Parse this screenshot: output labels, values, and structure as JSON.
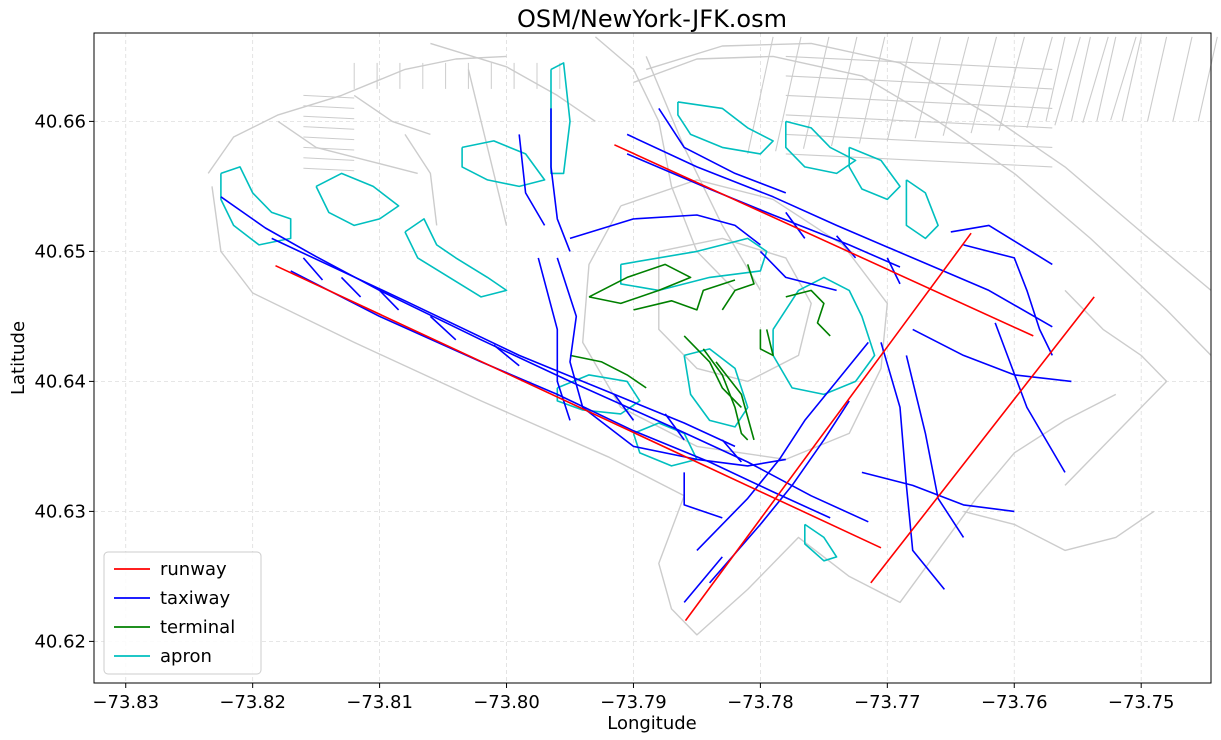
{
  "chart_data": {
    "type": "map",
    "title": "OSM/NewYork-JFK.osm",
    "xlabel": "Longitude",
    "ylabel": "Latitude",
    "xlim": [
      -73.8325,
      -73.7445
    ],
    "ylim": [
      40.6168,
      40.6668
    ],
    "xticks": [
      -73.83,
      -73.82,
      -73.81,
      -73.8,
      -73.79,
      -73.78,
      -73.77,
      -73.76,
      -73.75
    ],
    "xtick_labels": [
      "−73.83",
      "−73.82",
      "−73.81",
      "−73.80",
      "−73.79",
      "−73.78",
      "−73.77",
      "−73.76",
      "−73.75"
    ],
    "yticks": [
      40.62,
      40.63,
      40.64,
      40.65,
      40.66
    ],
    "ytick_labels": [
      "40.62",
      "40.63",
      "40.64",
      "40.65",
      "40.66"
    ],
    "grid": true,
    "legend_position": "lower-left",
    "legend": [
      {
        "name": "runway",
        "color": "#ff0000"
      },
      {
        "name": "taxiway",
        "color": "#0000ff"
      },
      {
        "name": "terminal",
        "color": "#008000"
      },
      {
        "name": "apron",
        "color": "#00bfbf"
      }
    ],
    "background_color": "#cccccc",
    "runways": [
      [
        [
          -73.8182,
          40.6489
        ],
        [
          -73.7705,
          40.6272
        ]
      ],
      [
        [
          -73.7915,
          40.6582
        ],
        [
          -73.7585,
          40.6435
        ]
      ],
      [
        [
          -73.7859,
          40.6216
        ],
        [
          -73.7634,
          40.6514
        ]
      ],
      [
        [
          -73.7713,
          40.6245
        ],
        [
          -73.7537,
          40.6465
        ]
      ]
    ],
    "taxiways": [
      [
        [
          -73.8225,
          40.6542
        ],
        [
          -73.819,
          40.6518
        ],
        [
          -73.815,
          40.6496
        ],
        [
          -73.81,
          40.647
        ],
        [
          -73.802,
          40.6432
        ],
        [
          -73.795,
          40.64
        ],
        [
          -73.787,
          40.6365
        ],
        [
          -73.781,
          40.6338
        ],
        [
          -73.776,
          40.6312
        ],
        [
          -73.7715,
          40.6292
        ]
      ],
      [
        [
          -73.817,
          40.6485
        ],
        [
          -73.81,
          40.645
        ],
        [
          -73.802,
          40.6415
        ],
        [
          -73.796,
          40.639
        ],
        [
          -73.79,
          40.6362
        ],
        [
          -73.784,
          40.6338
        ],
        [
          -73.779,
          40.6315
        ],
        [
          -73.7745,
          40.6295
        ]
      ],
      [
        [
          -73.8185,
          40.651
        ],
        [
          -73.808,
          40.6462
        ],
        [
          -73.799,
          40.642
        ],
        [
          -73.792,
          40.6392
        ],
        [
          -73.786,
          40.6368
        ],
        [
          -73.782,
          40.635
        ]
      ],
      [
        [
          -73.7905,
          40.659
        ],
        [
          -73.785,
          40.6565
        ],
        [
          -73.779,
          40.6542
        ],
        [
          -73.774,
          40.652
        ],
        [
          -73.768,
          40.6495
        ],
        [
          -73.762,
          40.647
        ],
        [
          -73.757,
          40.6442
        ]
      ],
      [
        [
          -73.7905,
          40.6575
        ],
        [
          -73.784,
          40.6548
        ],
        [
          -73.779,
          40.6528
        ],
        [
          -73.773,
          40.6505
        ],
        [
          -73.769,
          40.6488
        ]
      ],
      [
        [
          -73.788,
          40.661
        ],
        [
          -73.786,
          40.658
        ],
        [
          -73.782,
          40.656
        ],
        [
          -73.778,
          40.6545
        ]
      ],
      [
        [
          -73.7965,
          40.661
        ],
        [
          -73.7965,
          40.6565
        ],
        [
          -73.796,
          40.6525
        ],
        [
          -73.795,
          40.65
        ]
      ],
      [
        [
          -73.799,
          40.659
        ],
        [
          -73.7985,
          40.6545
        ],
        [
          -73.797,
          40.652
        ]
      ],
      [
        [
          -73.795,
          40.651
        ],
        [
          -73.79,
          40.6525
        ],
        [
          -73.785,
          40.6528
        ],
        [
          -73.782,
          40.652
        ],
        [
          -73.78,
          40.6505
        ]
      ],
      [
        [
          -73.796,
          40.6495
        ],
        [
          -73.7945,
          40.645
        ],
        [
          -73.795,
          40.6415
        ],
        [
          -73.794,
          40.638
        ],
        [
          -73.79,
          40.635
        ],
        [
          -73.785,
          40.634
        ],
        [
          -73.781,
          40.6335
        ],
        [
          -73.778,
          40.634
        ]
      ],
      [
        [
          -73.7975,
          40.6495
        ],
        [
          -73.796,
          40.644
        ],
        [
          -73.796,
          40.64
        ],
        [
          -73.795,
          40.637
        ]
      ],
      [
        [
          -73.78,
          40.65
        ],
        [
          -73.778,
          40.648
        ],
        [
          -73.774,
          40.647
        ]
      ],
      [
        [
          -73.785,
          40.627
        ],
        [
          -73.781,
          40.631
        ],
        [
          -73.7785,
          40.634
        ],
        [
          -73.7765,
          40.637
        ],
        [
          -73.774,
          40.64
        ],
        [
          -73.7715,
          40.643
        ]
      ],
      [
        [
          -73.784,
          40.6245
        ],
        [
          -73.78,
          40.629
        ],
        [
          -73.7775,
          40.632
        ],
        [
          -73.775,
          40.6355
        ],
        [
          -73.773,
          40.6385
        ]
      ],
      [
        [
          -73.786,
          40.623
        ],
        [
          -73.783,
          40.6265
        ]
      ],
      [
        [
          -73.7705,
          40.643
        ],
        [
          -73.769,
          40.638
        ],
        [
          -73.7685,
          40.632
        ],
        [
          -73.768,
          40.627
        ],
        [
          -73.7655,
          40.624
        ]
      ],
      [
        [
          -73.7685,
          40.642
        ],
        [
          -73.767,
          40.636
        ],
        [
          -73.766,
          40.631
        ],
        [
          -73.764,
          40.628
        ]
      ],
      [
        [
          -73.764,
          40.6505
        ],
        [
          -73.76,
          40.6495
        ],
        [
          -73.759,
          40.647
        ],
        [
          -73.758,
          40.644
        ],
        [
          -73.757,
          40.642
        ]
      ],
      [
        [
          -73.765,
          40.6515
        ],
        [
          -73.762,
          40.652
        ],
        [
          -73.757,
          40.649
        ]
      ],
      [
        [
          -73.768,
          40.644
        ],
        [
          -73.764,
          40.642
        ],
        [
          -73.76,
          40.6405
        ],
        [
          -73.7555,
          40.64
        ]
      ],
      [
        [
          -73.7615,
          40.6445
        ],
        [
          -73.759,
          40.638
        ],
        [
          -73.756,
          40.633
        ]
      ],
      [
        [
          -73.772,
          40.633
        ],
        [
          -73.768,
          40.632
        ],
        [
          -73.764,
          40.6305
        ],
        [
          -73.76,
          40.63
        ]
      ],
      [
        [
          -73.786,
          40.633
        ],
        [
          -73.786,
          40.6305
        ],
        [
          -73.783,
          40.6295
        ]
      ],
      [
        [
          -73.816,
          40.6495
        ],
        [
          -73.8145,
          40.6478
        ]
      ],
      [
        [
          -73.813,
          40.648
        ],
        [
          -73.8115,
          40.6465
        ]
      ],
      [
        [
          -73.81,
          40.647
        ],
        [
          -73.8085,
          40.6455
        ]
      ],
      [
        [
          -73.806,
          40.645
        ],
        [
          -73.804,
          40.6432
        ]
      ],
      [
        [
          -73.801,
          40.6428
        ],
        [
          -73.799,
          40.6412
        ]
      ],
      [
        [
          -73.7915,
          40.639
        ],
        [
          -73.79,
          40.637
        ]
      ],
      [
        [
          -73.7875,
          40.6375
        ],
        [
          -73.786,
          40.6355
        ]
      ],
      [
        [
          -73.783,
          40.6355
        ],
        [
          -73.7815,
          40.6338
        ]
      ],
      [
        [
          -73.778,
          40.653
        ],
        [
          -73.7765,
          40.651
        ]
      ],
      [
        [
          -73.774,
          40.6512
        ],
        [
          -73.7725,
          40.6495
        ]
      ],
      [
        [
          -73.77,
          40.6495
        ],
        [
          -73.769,
          40.6475
        ]
      ]
    ],
    "terminals": [
      [
        [
          -73.7935,
          40.6465
        ],
        [
          -73.7905,
          40.648
        ],
        [
          -73.7875,
          40.649
        ],
        [
          -73.7855,
          40.648
        ],
        [
          -73.788,
          40.647
        ],
        [
          -73.791,
          40.646
        ],
        [
          -73.7935,
          40.6465
        ]
      ],
      [
        [
          -73.79,
          40.6455
        ],
        [
          -73.787,
          40.6462
        ],
        [
          -73.785,
          40.6455
        ],
        [
          -73.7845,
          40.647
        ],
        [
          -73.782,
          40.6478
        ]
      ],
      [
        [
          -73.783,
          40.6455
        ],
        [
          -73.782,
          40.647
        ],
        [
          -73.7805,
          40.6475
        ],
        [
          -73.781,
          40.649
        ]
      ],
      [
        [
          -73.78,
          40.644
        ],
        [
          -73.78,
          40.6425
        ],
        [
          -73.779,
          40.642
        ],
        [
          -73.7795,
          40.644
        ]
      ],
      [
        [
          -73.778,
          40.6465
        ],
        [
          -73.776,
          40.647
        ],
        [
          -73.775,
          40.646
        ],
        [
          -73.7755,
          40.6445
        ],
        [
          -73.7745,
          40.6435
        ]
      ],
      [
        [
          -73.786,
          40.6435
        ],
        [
          -73.784,
          40.6415
        ],
        [
          -73.783,
          40.6395
        ],
        [
          -73.7815,
          40.638
        ]
      ],
      [
        [
          -73.7845,
          40.6425
        ],
        [
          -73.783,
          40.6405
        ],
        [
          -73.782,
          40.638
        ],
        [
          -73.7815,
          40.636
        ],
        [
          -73.781,
          40.6355
        ]
      ],
      [
        [
          -73.7835,
          40.6415
        ],
        [
          -73.7815,
          40.639
        ],
        [
          -73.7805,
          40.6355
        ]
      ],
      [
        [
          -73.795,
          40.642
        ],
        [
          -73.7925,
          40.6415
        ],
        [
          -73.7905,
          40.6405
        ],
        [
          -73.789,
          40.6395
        ]
      ]
    ],
    "aprons": [
      [
        [
          -73.8225,
          40.656
        ],
        [
          -73.821,
          40.6565
        ],
        [
          -73.82,
          40.6545
        ],
        [
          -73.8185,
          40.653
        ],
        [
          -73.817,
          40.6525
        ],
        [
          -73.817,
          40.651
        ],
        [
          -73.8195,
          40.6505
        ],
        [
          -73.8215,
          40.652
        ],
        [
          -73.8225,
          40.654
        ],
        [
          -73.8225,
          40.656
        ]
      ],
      [
        [
          -73.815,
          40.655
        ],
        [
          -73.813,
          40.656
        ],
        [
          -73.8105,
          40.655
        ],
        [
          -73.8085,
          40.6535
        ],
        [
          -73.81,
          40.6525
        ],
        [
          -73.812,
          40.652
        ],
        [
          -73.814,
          40.653
        ],
        [
          -73.815,
          40.655
        ]
      ],
      [
        [
          -73.808,
          40.6515
        ],
        [
          -73.8065,
          40.6525
        ],
        [
          -73.8055,
          40.6505
        ],
        [
          -73.804,
          40.6495
        ],
        [
          -73.8015,
          40.648
        ],
        [
          -73.8,
          40.647
        ],
        [
          -73.802,
          40.6465
        ],
        [
          -73.8045,
          40.648
        ],
        [
          -73.807,
          40.6495
        ],
        [
          -73.808,
          40.6515
        ]
      ],
      [
        [
          -73.8035,
          40.658
        ],
        [
          -73.801,
          40.6585
        ],
        [
          -73.7985,
          40.6575
        ],
        [
          -73.797,
          40.6555
        ],
        [
          -73.799,
          40.655
        ],
        [
          -73.8015,
          40.6555
        ],
        [
          -73.8035,
          40.6565
        ],
        [
          -73.8035,
          40.658
        ]
      ],
      [
        [
          -73.7965,
          40.664
        ],
        [
          -73.7955,
          40.6645
        ],
        [
          -73.795,
          40.66
        ],
        [
          -73.7955,
          40.656
        ],
        [
          -73.7965,
          40.656
        ],
        [
          -73.7965,
          40.664
        ]
      ],
      [
        [
          -73.791,
          40.649
        ],
        [
          -73.785,
          40.65
        ],
        [
          -73.781,
          40.651
        ],
        [
          -73.7795,
          40.65
        ],
        [
          -73.78,
          40.6485
        ],
        [
          -73.784,
          40.648
        ],
        [
          -73.788,
          40.647
        ],
        [
          -73.791,
          40.6475
        ],
        [
          -73.791,
          40.649
        ]
      ],
      [
        [
          -73.779,
          40.644
        ],
        [
          -73.777,
          40.647
        ],
        [
          -73.775,
          40.648
        ],
        [
          -73.773,
          40.647
        ],
        [
          -73.772,
          40.645
        ],
        [
          -73.771,
          40.642
        ],
        [
          -73.7725,
          40.64
        ],
        [
          -73.775,
          40.639
        ],
        [
          -73.7775,
          40.6395
        ],
        [
          -73.779,
          40.642
        ],
        [
          -73.779,
          40.644
        ]
      ],
      [
        [
          -73.786,
          40.642
        ],
        [
          -73.784,
          40.6425
        ],
        [
          -73.782,
          40.641
        ],
        [
          -73.781,
          40.638
        ],
        [
          -73.782,
          40.6365
        ],
        [
          -73.784,
          40.637
        ],
        [
          -73.7855,
          40.639
        ],
        [
          -73.786,
          40.642
        ]
      ],
      [
        [
          -73.796,
          40.6395
        ],
        [
          -73.7935,
          40.6405
        ],
        [
          -73.7905,
          40.64
        ],
        [
          -73.7895,
          40.6385
        ],
        [
          -73.791,
          40.6375
        ],
        [
          -73.794,
          40.6378
        ],
        [
          -73.796,
          40.6385
        ],
        [
          -73.796,
          40.6395
        ]
      ],
      [
        [
          -73.79,
          40.636
        ],
        [
          -73.788,
          40.6368
        ],
        [
          -73.786,
          40.636
        ],
        [
          -73.785,
          40.634
        ],
        [
          -73.787,
          40.6335
        ],
        [
          -73.7895,
          40.6345
        ],
        [
          -73.79,
          40.636
        ]
      ],
      [
        [
          -73.7865,
          40.6615
        ],
        [
          -73.783,
          40.661
        ],
        [
          -73.781,
          40.6595
        ],
        [
          -73.779,
          40.6585
        ],
        [
          -73.78,
          40.6575
        ],
        [
          -73.783,
          40.658
        ],
        [
          -73.7855,
          40.659
        ],
        [
          -73.7865,
          40.6605
        ],
        [
          -73.7865,
          40.6615
        ]
      ],
      [
        [
          -73.778,
          40.66
        ],
        [
          -73.776,
          40.6595
        ],
        [
          -73.7745,
          40.658
        ],
        [
          -73.7725,
          40.657
        ],
        [
          -73.774,
          40.656
        ],
        [
          -73.7765,
          40.6565
        ],
        [
          -73.778,
          40.658
        ],
        [
          -73.778,
          40.66
        ]
      ],
      [
        [
          -73.773,
          40.658
        ],
        [
          -73.7705,
          40.657
        ],
        [
          -73.769,
          40.655
        ],
        [
          -73.77,
          40.654
        ],
        [
          -73.772,
          40.6548
        ],
        [
          -73.773,
          40.6565
        ],
        [
          -73.773,
          40.658
        ]
      ],
      [
        [
          -73.7685,
          40.6555
        ],
        [
          -73.767,
          40.6545
        ],
        [
          -73.766,
          40.652
        ],
        [
          -73.767,
          40.651
        ],
        [
          -73.7685,
          40.652
        ],
        [
          -73.7685,
          40.6555
        ]
      ],
      [
        [
          -73.7765,
          40.629
        ],
        [
          -73.775,
          40.628
        ],
        [
          -73.774,
          40.6265
        ],
        [
          -73.775,
          40.6262
        ],
        [
          -73.7765,
          40.6275
        ],
        [
          -73.7765,
          40.629
        ]
      ]
    ]
  }
}
